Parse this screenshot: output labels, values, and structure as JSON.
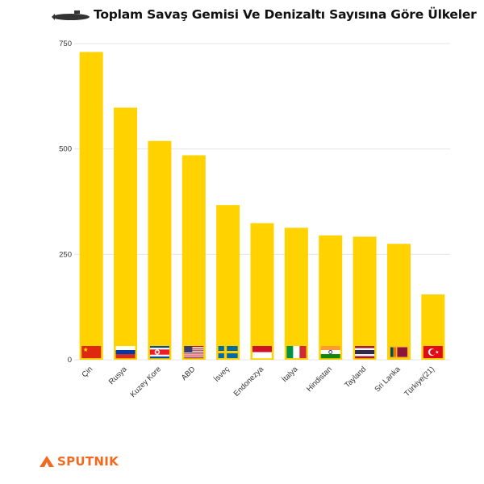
{
  "title": "Toplam Savaş Gemisi Ve Denizaltı Sayısına Göre Ülkeler",
  "title_icon": "submarine-icon",
  "logo": {
    "text": "SPUTNIK",
    "icon": "sputnik-logo-icon",
    "color": "#f26a21"
  },
  "colors": {
    "bar": "#ffd200",
    "grid": "#e6e6e6",
    "axis_text": "#333333"
  },
  "chart_data": {
    "type": "bar",
    "title": "Toplam Savaş Gemisi Ve Denizaltı Sayısına Göre Ülkeler",
    "xlabel": "",
    "ylabel": "",
    "categories": [
      "Çin",
      "Rusya",
      "Kuzey Kore",
      "ABD",
      "İsveç",
      "Endonezya",
      "İtalya",
      "Hindistan",
      "Tayland",
      "Sri Lanka",
      "Türkiye(21)"
    ],
    "values": [
      730,
      598,
      519,
      485,
      367,
      324,
      313,
      295,
      292,
      275,
      155
    ],
    "flags": [
      "flag-china",
      "flag-russia",
      "flag-north-korea",
      "flag-usa",
      "flag-sweden",
      "flag-indonesia",
      "flag-italy",
      "flag-india",
      "flag-thailand",
      "flag-sri-lanka",
      "flag-turkey"
    ],
    "ylim": [
      0,
      750
    ],
    "yticks": [
      0,
      250,
      500,
      750
    ],
    "grid": true,
    "legend": "none"
  }
}
